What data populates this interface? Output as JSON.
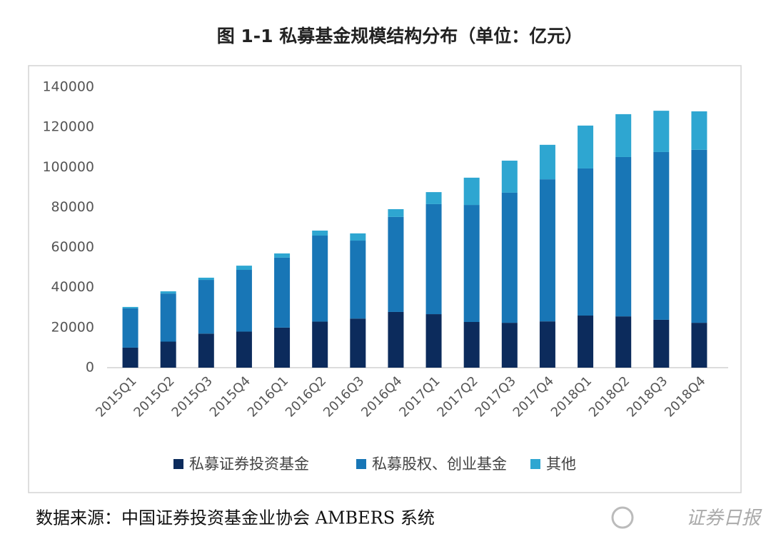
{
  "chart_data": {
    "type": "stacked_bar",
    "title": "图 1-1 私募基金规模结构分布（单位：亿元）",
    "categories": [
      "2015Q1",
      "2015Q2",
      "2015Q3",
      "2015Q4",
      "2016Q1",
      "2016Q2",
      "2016Q3",
      "2016Q4",
      "2017Q1",
      "2017Q2",
      "2017Q3",
      "2017Q4",
      "2018Q1",
      "2018Q2",
      "2018Q3",
      "2018Q4"
    ],
    "series": [
      {
        "name": "私募证券投资基金",
        "color": "#0c2b5c",
        "values": [
          10000,
          13000,
          17000,
          18000,
          20000,
          23000,
          24500,
          27800,
          26700,
          22800,
          22400,
          23100,
          26000,
          25600,
          23900,
          22400
        ]
      },
      {
        "name": "私募股权、创业基金",
        "color": "#1876b6",
        "values": [
          19600,
          24000,
          26800,
          30800,
          34900,
          42900,
          38900,
          47400,
          54900,
          58400,
          64900,
          70900,
          73400,
          79500,
          83700,
          86300
        ]
      },
      {
        "name": "其他",
        "color": "#2ea6d1",
        "values": [
          700,
          1100,
          1100,
          2100,
          2100,
          2500,
          3600,
          3900,
          6000,
          13600,
          16000,
          17200,
          21400,
          21400,
          20600,
          19200
        ]
      }
    ],
    "ylim": [
      0,
      140000
    ],
    "yticks": [
      0,
      20000,
      40000,
      60000,
      80000,
      100000,
      120000,
      140000
    ],
    "grid": false,
    "legend": "bottom"
  },
  "footer": {
    "source": "数据来源：中国证券投资基金业协会 AMBERS 系统",
    "logo": "证券日报"
  }
}
